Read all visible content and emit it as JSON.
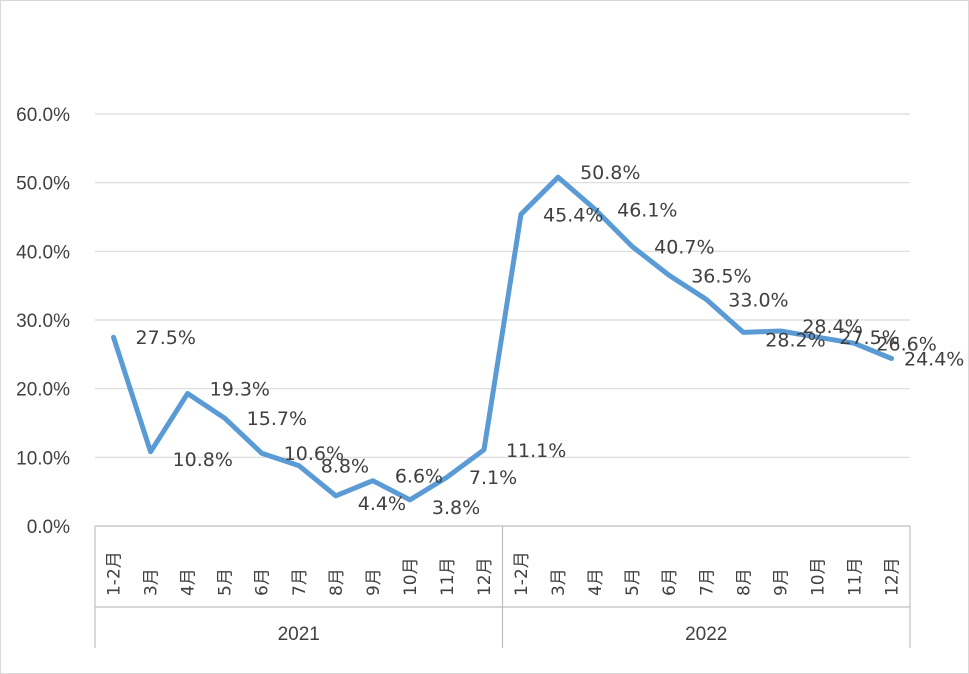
{
  "chart_data": {
    "type": "line",
    "title": "",
    "xlabel": "",
    "ylabel": "",
    "ylim": [
      0,
      60
    ],
    "yticks": [
      "0.0%",
      "10.0%",
      "20.0%",
      "30.0%",
      "40.0%",
      "50.0%",
      "60.0%"
    ],
    "grid": true,
    "legend": "none",
    "line_color": "#5b9bd5",
    "groups": [
      {
        "label": "2021",
        "categories": [
          "1-2月",
          "3月",
          "4月",
          "5月",
          "6月",
          "7月",
          "8月",
          "9月",
          "10月",
          "11月",
          "12月"
        ]
      },
      {
        "label": "2022",
        "categories": [
          "1-2月",
          "3月",
          "4月",
          "5月",
          "6月",
          "7月",
          "8月",
          "9月",
          "10月",
          "11月",
          "12月"
        ]
      }
    ],
    "series": [
      {
        "values": [
          27.5,
          10.8,
          19.3,
          15.7,
          10.6,
          8.8,
          4.4,
          6.6,
          3.8,
          7.1,
          11.1,
          45.4,
          50.8,
          46.1,
          40.7,
          36.5,
          33.0,
          28.2,
          28.4,
          27.5,
          26.6,
          24.4
        ],
        "labels": [
          "27.5%",
          "10.8%",
          "19.3%",
          "15.7%",
          "10.6%",
          "8.8%",
          "4.4%",
          "6.6%",
          "3.8%",
          "7.1%",
          "11.1%",
          "45.4%",
          "50.8%",
          "46.1%",
          "40.7%",
          "36.5%",
          "33.0%",
          "28.2%",
          "28.4%",
          "27.5%",
          "26.6%",
          "24.4%"
        ]
      }
    ]
  }
}
